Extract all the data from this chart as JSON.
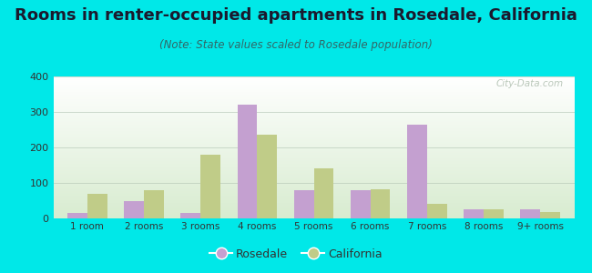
{
  "title": "Rooms in renter-occupied apartments in Rosedale, California",
  "subtitle": "(Note: State values scaled to Rosedale population)",
  "categories": [
    "1 room",
    "2 rooms",
    "3 rooms",
    "4 rooms",
    "5 rooms",
    "6 rooms",
    "7 rooms",
    "8 rooms",
    "9+ rooms"
  ],
  "rosedale_values": [
    15,
    50,
    15,
    320,
    80,
    80,
    265,
    25,
    25
  ],
  "california_values": [
    70,
    80,
    180,
    237,
    142,
    82,
    40,
    25,
    18
  ],
  "rosedale_color": "#c4a0d0",
  "california_color": "#c0cc88",
  "bg_color": "#00e8e8",
  "ylim": [
    0,
    400
  ],
  "yticks": [
    0,
    100,
    200,
    300,
    400
  ],
  "title_fontsize": 13,
  "subtitle_fontsize": 8.5,
  "bar_width": 0.35
}
